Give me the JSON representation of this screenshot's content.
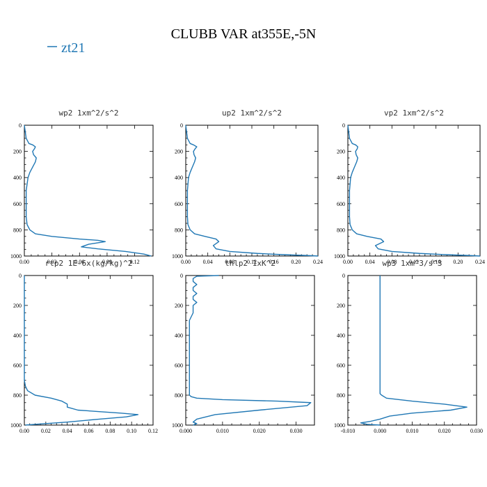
{
  "figure": {
    "title": "CLUBB VAR at355E,-5N",
    "legend": {
      "label": "zt21",
      "color": "#1f77b4"
    }
  },
  "chart_data": [
    {
      "type": "line",
      "title": "wp2  1xm^2/s^2",
      "xlim": [
        0,
        0.14
      ],
      "ylim": [
        1000,
        0
      ],
      "xticks": [
        0.0,
        0.03,
        0.06,
        0.09,
        0.12
      ],
      "xtick_labels": [
        "0.00",
        "0.03",
        "0.06",
        "0.09",
        "0.12"
      ],
      "yticks": [
        0,
        200,
        400,
        600,
        800,
        1000
      ],
      "ytick_labels": [
        "0",
        "200",
        "400",
        "600",
        "800",
        "1000"
      ],
      "series": [
        {
          "x": [
            0,
            0.002,
            0.005,
            0.009,
            0.012,
            0.011,
            0.009,
            0.01,
            0.013,
            0.012,
            0.009,
            0.006,
            0.004,
            0.003,
            0.002,
            0.002,
            0.002,
            0.002,
            0.002,
            0.003,
            0.006,
            0.012,
            0.03,
            0.06,
            0.08,
            0.088,
            0.07,
            0.062,
            0.08,
            0.11,
            0.13,
            0.138
          ],
          "y": [
            0,
            100,
            140,
            150,
            165,
            180,
            200,
            225,
            250,
            280,
            320,
            360,
            400,
            450,
            500,
            550,
            600,
            650,
            700,
            760,
            800,
            830,
            850,
            870,
            880,
            890,
            910,
            930,
            945,
            965,
            985,
            1000
          ]
        }
      ]
    },
    {
      "type": "line",
      "title": "up2  1xm^2/s^2",
      "xlim": [
        0,
        0.24
      ],
      "ylim": [
        1000,
        0
      ],
      "xticks": [
        0,
        0.04,
        0.08,
        0.12,
        0.16,
        0.2,
        0.24
      ],
      "xtick_labels": [
        "0.00",
        "0.04",
        "0.08",
        "0.12",
        "0.16",
        "0.20",
        "0.24"
      ],
      "yticks": [
        0,
        200,
        400,
        600,
        800,
        1000
      ],
      "ytick_labels": [
        "0",
        "200",
        "400",
        "600",
        "800",
        "1000"
      ],
      "series": [
        {
          "x": [
            0,
            0.003,
            0.008,
            0.014,
            0.02,
            0.017,
            0.014,
            0.015,
            0.018,
            0.016,
            0.012,
            0.008,
            0.005,
            0.004,
            0.003,
            0.003,
            0.003,
            0.003,
            0.003,
            0.004,
            0.008,
            0.016,
            0.035,
            0.055,
            0.06,
            0.05,
            0.055,
            0.08,
            0.13,
            0.18,
            0.22,
            0.24
          ],
          "y": [
            0,
            100,
            140,
            150,
            165,
            180,
            200,
            225,
            250,
            280,
            320,
            360,
            400,
            450,
            500,
            550,
            600,
            650,
            700,
            760,
            800,
            830,
            850,
            870,
            890,
            920,
            945,
            965,
            980,
            990,
            996,
            1000
          ]
        }
      ]
    },
    {
      "type": "line",
      "title": "vp2  1xm^2/s^2",
      "xlim": [
        0,
        0.24
      ],
      "ylim": [
        1000,
        0
      ],
      "xticks": [
        0,
        0.04,
        0.08,
        0.12,
        0.16,
        0.2,
        0.24
      ],
      "xtick_labels": [
        "0.00",
        "0.04",
        "0.08",
        "0.12",
        "0.16",
        "0.20",
        "0.24"
      ],
      "yticks": [
        0,
        200,
        400,
        600,
        800,
        1000
      ],
      "ytick_labels": [
        "0",
        "200",
        "400",
        "600",
        "800",
        "1000"
      ],
      "series": [
        {
          "x": [
            0,
            0.003,
            0.008,
            0.014,
            0.018,
            0.017,
            0.014,
            0.015,
            0.018,
            0.016,
            0.012,
            0.008,
            0.005,
            0.004,
            0.003,
            0.003,
            0.003,
            0.003,
            0.003,
            0.004,
            0.008,
            0.016,
            0.035,
            0.06,
            0.065,
            0.05,
            0.055,
            0.08,
            0.13,
            0.18,
            0.22,
            0.24
          ],
          "y": [
            0,
            100,
            140,
            150,
            165,
            180,
            200,
            225,
            250,
            280,
            320,
            360,
            400,
            450,
            500,
            550,
            600,
            650,
            700,
            760,
            800,
            830,
            850,
            870,
            890,
            920,
            945,
            965,
            980,
            990,
            996,
            1000
          ]
        }
      ]
    },
    {
      "type": "line",
      "title": "rtp2  1E-6x(kg/kg)^2",
      "xlim": [
        0,
        0.12
      ],
      "ylim": [
        1000,
        0
      ],
      "xticks": [
        0,
        0.02,
        0.04,
        0.06,
        0.08,
        0.1,
        0.12
      ],
      "xtick_labels": [
        "0.00",
        "0.02",
        "0.04",
        "0.06",
        "0.08",
        "0.10",
        "0.12"
      ],
      "yticks": [
        0,
        200,
        400,
        600,
        800,
        1000
      ],
      "ytick_labels": [
        "0",
        "200",
        "400",
        "600",
        "800",
        "1000"
      ],
      "series": [
        {
          "x": [
            0,
            0,
            0,
            0,
            0,
            0,
            0.001,
            0.003,
            0.01,
            0.025,
            0.035,
            0.04,
            0.04,
            0.05,
            0.07,
            0.09,
            0.106,
            0.095,
            0.07,
            0.04,
            0.01,
            0.001
          ],
          "y": [
            0,
            100,
            300,
            500,
            650,
            700,
            740,
            770,
            800,
            820,
            840,
            860,
            880,
            900,
            910,
            920,
            930,
            945,
            960,
            980,
            995,
            1000
          ]
        }
      ]
    },
    {
      "type": "line",
      "title": "thlp2  1xK^2",
      "xlim": [
        0,
        0.035
      ],
      "ylim": [
        1000,
        0
      ],
      "xticks": [
        0,
        0.01,
        0.02,
        0.03
      ],
      "xtick_labels": [
        "0.000",
        "0.010",
        "0.020",
        "0.030"
      ],
      "yticks": [
        0,
        200,
        400,
        600,
        800,
        1000
      ],
      "ytick_labels": [
        "0",
        "200",
        "400",
        "600",
        "800",
        "1000"
      ],
      "series": [
        {
          "x": [
            0.009,
            0.003,
            0.002,
            0.002,
            0.003,
            0.002,
            0.002,
            0.003,
            0.002,
            0.002,
            0.003,
            0.002,
            0.002,
            0.001,
            0.001,
            0.001,
            0.001,
            0.001,
            0.001,
            0.001,
            0.001,
            0.0015,
            0.003,
            0.01,
            0.025,
            0.034,
            0.033,
            0.02,
            0.008,
            0.003,
            0.002,
            0.003,
            0.002
          ],
          "y": [
            0,
            5,
            20,
            40,
            60,
            80,
            100,
            120,
            140,
            160,
            180,
            200,
            250,
            300,
            400,
            500,
            600,
            700,
            760,
            790,
            800,
            810,
            820,
            830,
            840,
            850,
            870,
            900,
            930,
            960,
            980,
            990,
            1000
          ]
        }
      ]
    },
    {
      "type": "line",
      "title": "wp3  1xm^3/s^3",
      "xlim": [
        -0.01,
        0.03
      ],
      "ylim": [
        1000,
        0
      ],
      "xticks": [
        -0.01,
        0,
        0.01,
        0.02,
        0.03
      ],
      "xtick_labels": [
        "-0.010",
        "0.000",
        "0.010",
        "0.020",
        "0.030"
      ],
      "yticks": [
        0,
        200,
        400,
        600,
        800,
        1000
      ],
      "ytick_labels": [
        "0",
        "200",
        "400",
        "600",
        "800",
        "1000"
      ],
      "series": [
        {
          "x": [
            0,
            0,
            0,
            0,
            0,
            0,
            0,
            0.0005,
            0.002,
            0.01,
            0.02,
            0.027,
            0.022,
            0.01,
            0.003,
            0,
            -0.003,
            -0.006,
            -0.004,
            0
          ],
          "y": [
            0,
            200,
            400,
            600,
            700,
            760,
            790,
            800,
            820,
            840,
            860,
            880,
            900,
            920,
            940,
            960,
            975,
            985,
            995,
            1000
          ]
        }
      ]
    }
  ]
}
